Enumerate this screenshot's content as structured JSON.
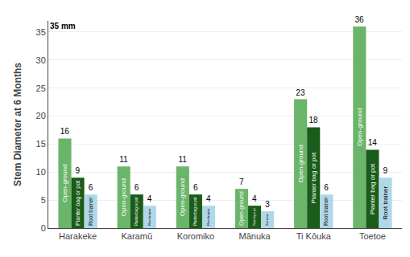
{
  "chart_data": {
    "type": "bar",
    "ylabel": "Stem Diameter at 6 Months",
    "annotation": "35 mm",
    "categories": [
      "Harakeke",
      "Karamū",
      "Koromiko",
      "Mānuka",
      "Ti Kōuka",
      "Toetoe"
    ],
    "series": [
      {
        "name": "Open-ground",
        "color": "#6ab56a",
        "values": [
          16,
          11,
          11,
          7,
          23,
          36
        ]
      },
      {
        "name": "Planter bag or pot",
        "color": "#1a5c1a",
        "values": [
          9,
          6,
          6,
          4,
          18,
          14
        ]
      },
      {
        "name": "Root trainer",
        "color": "#b0d8e8",
        "values": [
          6,
          4,
          4,
          3,
          6,
          9
        ]
      }
    ],
    "ylim": [
      0,
      37
    ],
    "yticks": [
      0,
      5,
      10,
      15,
      20,
      25,
      30,
      35
    ],
    "grid": true,
    "data_labels": true
  }
}
